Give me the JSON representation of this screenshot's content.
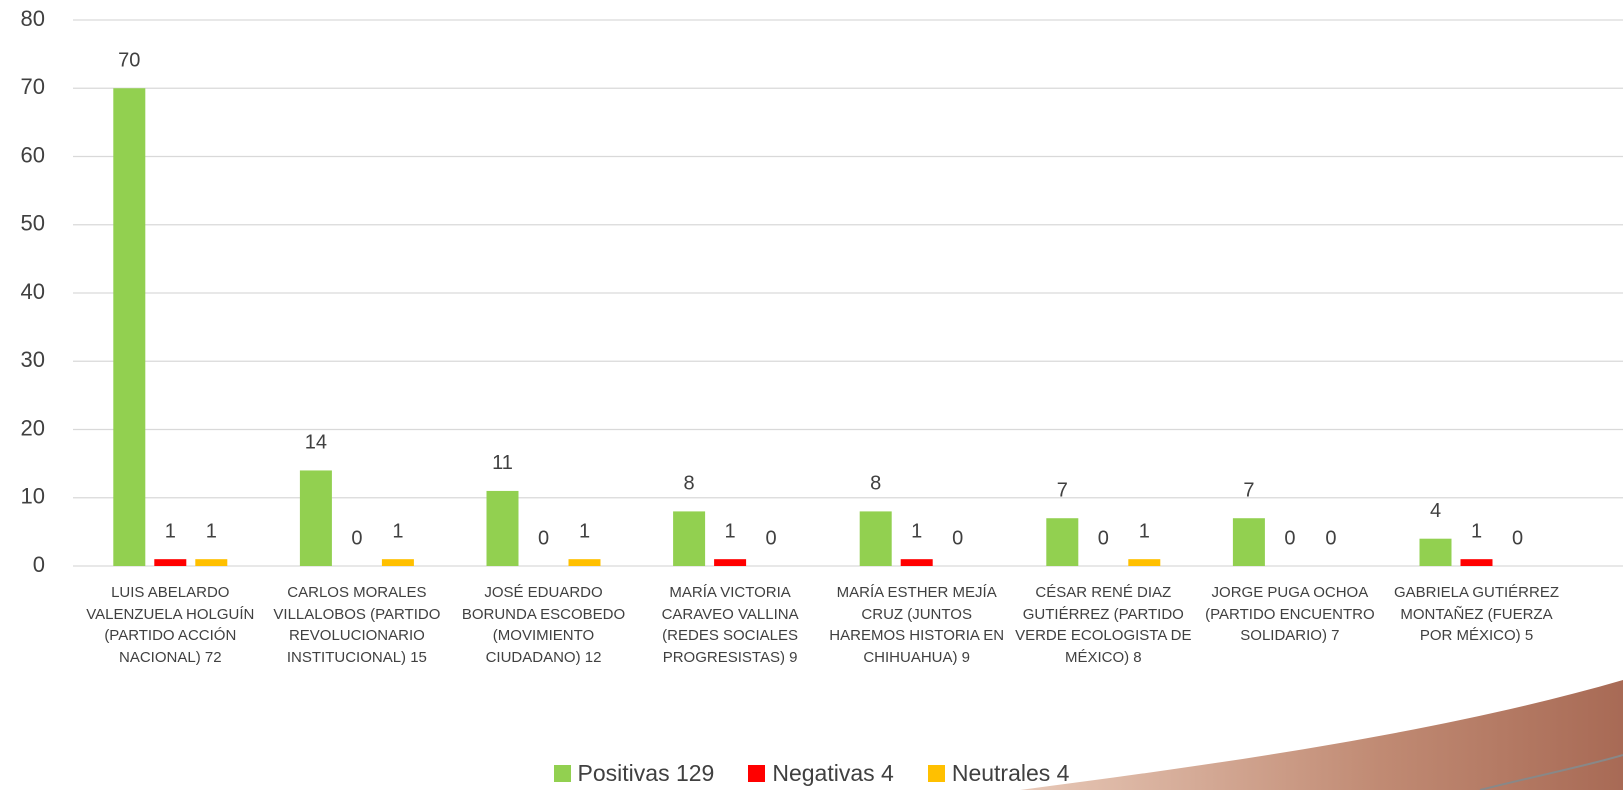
{
  "chart_data": {
    "type": "bar",
    "categories": [
      "LUIS ABELARDO VALENZUELA HOLGUÍN (PARTIDO ACCIÓN NACIONAL) 72",
      "CARLOS MORALES VILLALOBOS (PARTIDO REVOLUCIONARIO INSTITUCIONAL) 15",
      "JOSÉ EDUARDO BORUNDA ESCOBEDO (MOVIMIENTO CIUDADANO) 12",
      "MARÍA VICTORIA CARAVEO VALLINA (REDES SOCIALES PROGRESISTAS) 9",
      "MARÍA ESTHER MEJÍA CRUZ (JUNTOS HAREMOS HISTORIA EN CHIHUAHUA) 9",
      "CÉSAR RENÉ DIAZ GUTIÉRREZ (PARTIDO VERDE ECOLOGISTA DE MÉXICO) 8",
      "JORGE PUGA OCHOA (PARTIDO ENCUENTRO SOLIDARIO) 7",
      "GABRIELA GUTIÉRREZ MONTAÑEZ (FUERZA POR MÉXICO) 5"
    ],
    "series": [
      {
        "name": "Positivas 129",
        "color": "#92d050",
        "values": [
          70,
          14,
          11,
          8,
          8,
          7,
          7,
          4
        ]
      },
      {
        "name": "Negativas 4",
        "color": "#ff0000",
        "values": [
          1,
          0,
          0,
          1,
          1,
          0,
          0,
          1
        ]
      },
      {
        "name": "Neutrales 4",
        "color": "#ffc000",
        "values": [
          1,
          1,
          1,
          0,
          0,
          1,
          0,
          0
        ]
      }
    ],
    "ylim": [
      0,
      80
    ],
    "yticks": [
      0,
      10,
      20,
      30,
      40,
      50,
      60,
      70,
      80
    ],
    "grid": true,
    "legend": "bottom"
  }
}
